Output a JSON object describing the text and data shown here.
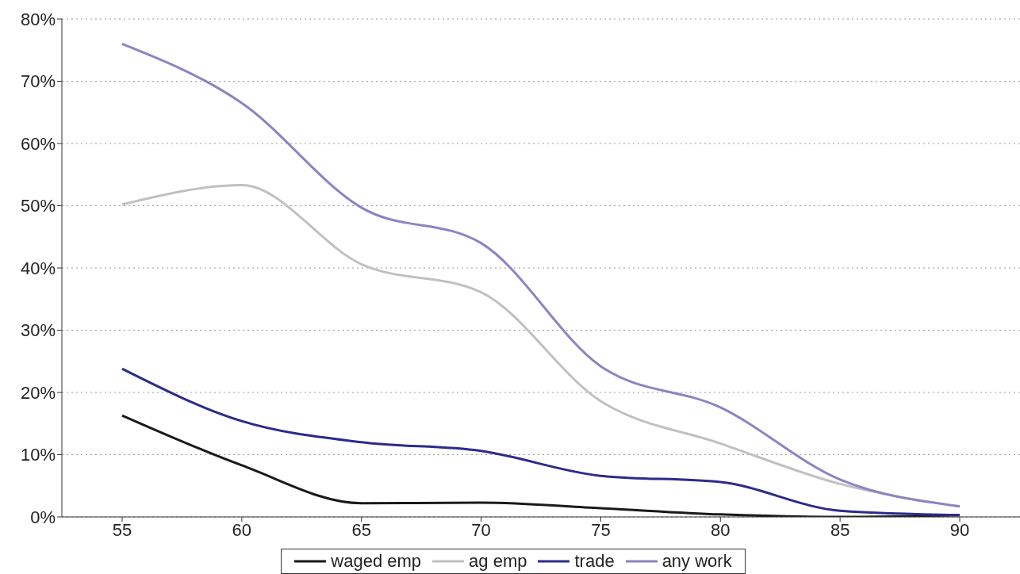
{
  "chart_data": {
    "type": "line",
    "categories": [
      "55",
      "60",
      "65",
      "70",
      "75",
      "80",
      "85",
      "90"
    ],
    "series": [
      {
        "name": "waged emp",
        "color": "#1a1a1a",
        "values": [
          16.3,
          8.3,
          2.2,
          2.3,
          1.4,
          0.4,
          0,
          0.3
        ]
      },
      {
        "name": "ag emp",
        "color": "#c0c0c0",
        "values": [
          50.2,
          53.3,
          40.6,
          36.1,
          18.6,
          11.8,
          5.3,
          1.7
        ]
      },
      {
        "name": "trade",
        "color": "#2b2b8c",
        "values": [
          23.8,
          15.4,
          12.0,
          10.6,
          6.6,
          5.6,
          1.0,
          0.3
        ]
      },
      {
        "name": "any work",
        "color": "#8a84c4",
        "values": [
          76.0,
          66.5,
          49.7,
          44.0,
          24.2,
          17.6,
          6.0,
          1.7
        ]
      }
    ],
    "ylim": [
      0,
      80
    ],
    "yticks": [
      {
        "value": 0,
        "label": "0%"
      },
      {
        "value": 10,
        "label": "10%"
      },
      {
        "value": 20,
        "label": "20%"
      },
      {
        "value": 30,
        "label": "30%"
      },
      {
        "value": 40,
        "label": "40%"
      },
      {
        "value": 50,
        "label": "50%"
      },
      {
        "value": 60,
        "label": "60%"
      },
      {
        "value": 70,
        "label": "70%"
      },
      {
        "value": 80,
        "label": "80%"
      }
    ],
    "grid": "y",
    "legend": "bottom",
    "marker": "none",
    "line_style": "solid"
  }
}
